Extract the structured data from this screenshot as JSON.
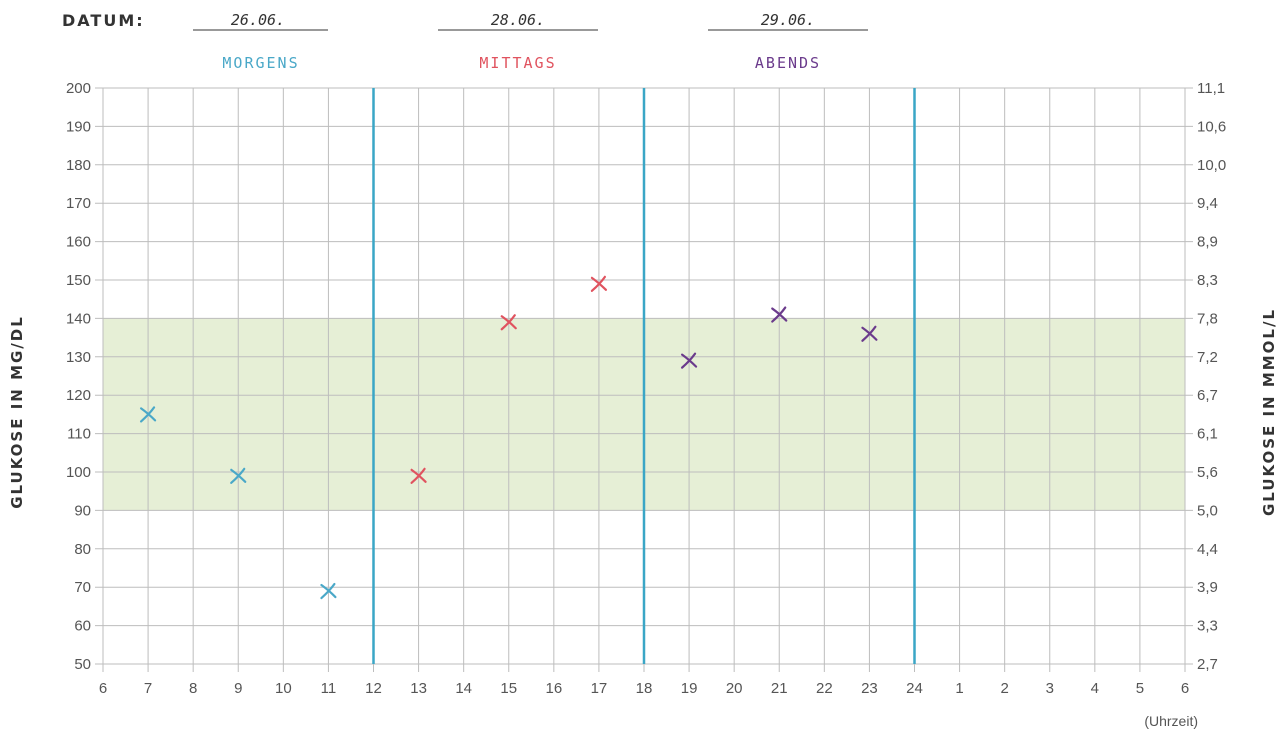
{
  "header": {
    "datum_label": "DATUM:",
    "dates": [
      "26.06.",
      "28.06.",
      "29.06."
    ]
  },
  "periods": [
    {
      "label": "MORGENS",
      "color": "#4aa8c8"
    },
    {
      "label": "MITTAGS",
      "color": "#e0535f"
    },
    {
      "label": "ABENDS",
      "color": "#6b3b8c"
    }
  ],
  "chart_data": {
    "type": "scatter",
    "xlabel": "(Uhrzeit)",
    "ylabel_left": "GLUKOSE IN MG/DL",
    "ylabel_right": "GLUKOSE IN MMOL/L",
    "x_tick_labels": [
      "6",
      "7",
      "8",
      "9",
      "10",
      "11",
      "12",
      "13",
      "14",
      "15",
      "16",
      "17",
      "18",
      "19",
      "20",
      "21",
      "22",
      "23",
      "24",
      "1",
      "2",
      "3",
      "4",
      "5",
      "6"
    ],
    "y_ticks_left": [
      50,
      60,
      70,
      80,
      90,
      100,
      110,
      120,
      130,
      140,
      150,
      160,
      170,
      180,
      190,
      200
    ],
    "y_ticks_right": [
      "2,7",
      "3,3",
      "3,9",
      "4,4",
      "5,0",
      "5,6",
      "6,1",
      "6,7",
      "7,2",
      "7,8",
      "8,3",
      "8,9",
      "9,4",
      "10,0",
      "10,6",
      "11,1"
    ],
    "ylim": [
      50,
      200
    ],
    "target_range": [
      90,
      140
    ],
    "period_dividers": [
      "12",
      "18",
      "24"
    ],
    "grid": true,
    "series": [
      {
        "name": "MORGENS",
        "color": "#4aa8c8",
        "points": [
          {
            "x": "7",
            "y": 115
          },
          {
            "x": "9",
            "y": 99
          },
          {
            "x": "11",
            "y": 69
          }
        ]
      },
      {
        "name": "MITTAGS",
        "color": "#e0535f",
        "points": [
          {
            "x": "13",
            "y": 99
          },
          {
            "x": "15",
            "y": 139
          },
          {
            "x": "17",
            "y": 149
          }
        ]
      },
      {
        "name": "ABENDS",
        "color": "#6b3b8c",
        "points": [
          {
            "x": "19",
            "y": 129
          },
          {
            "x": "21",
            "y": 141
          },
          {
            "x": "23",
            "y": 136
          }
        ]
      }
    ],
    "colors": {
      "grid": "#bdbdbd",
      "target_fill": "#e6efd6",
      "divider": "#3aa6c6"
    }
  }
}
